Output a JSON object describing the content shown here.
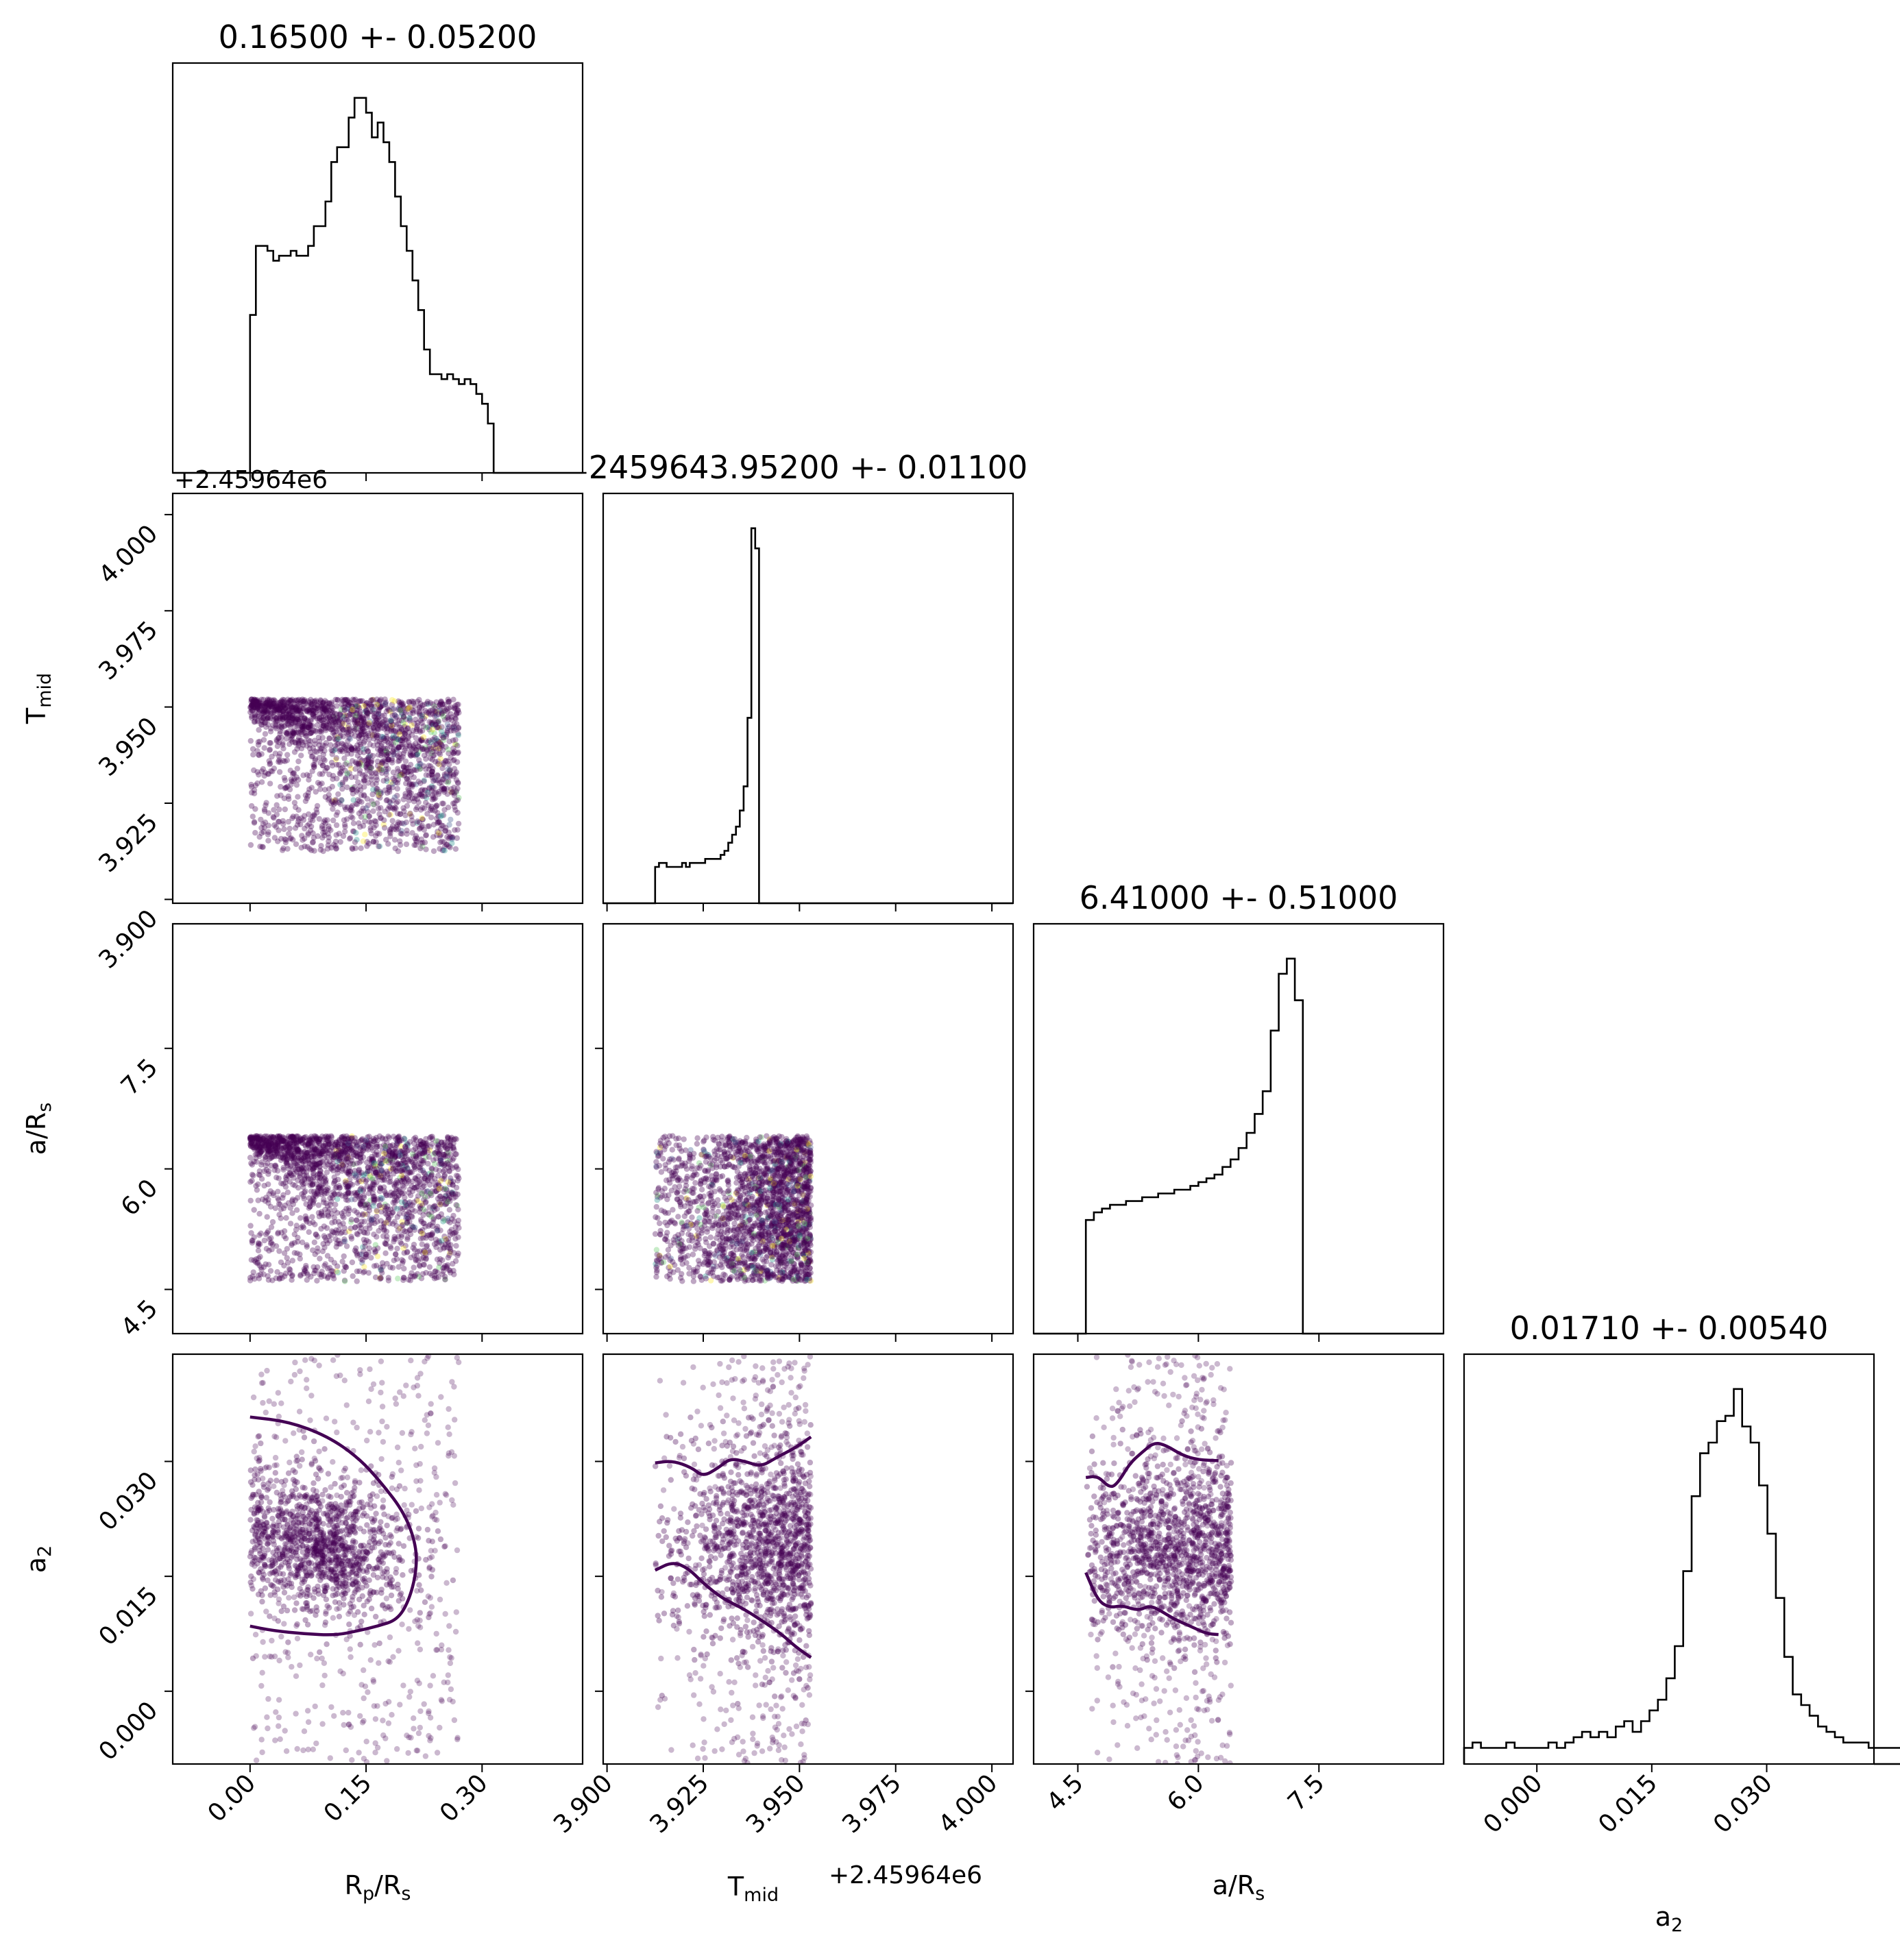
{
  "chart_data": {
    "type": "corner",
    "colors": {
      "cloud": "#440154",
      "contour": "#440154",
      "hist": "#000000",
      "axes": "#000000"
    },
    "offset_label": "+2.45964e6",
    "params": [
      {
        "key": "rp",
        "label": "R",
        "sub": "p",
        "label_tail": "/R",
        "sub2": "s",
        "range": [
          -0.1,
          0.43
        ],
        "ticks": [
          0.0,
          0.15,
          0.3
        ],
        "tick_labels": [
          "0.00",
          "0.15",
          "0.30"
        ],
        "title": "0.16500 +- 0.05200"
      },
      {
        "key": "tmid",
        "label": "T",
        "sub": "mid",
        "label_tail": "",
        "sub2": "",
        "range": [
          3.899,
          4.0055
        ],
        "offset": 2459640,
        "ticks": [
          3.9,
          3.925,
          3.95,
          3.975,
          4.0
        ],
        "tick_labels": [
          "3.900",
          "3.925",
          "3.950",
          "3.975",
          "4.000"
        ],
        "title": "2459643.95200 +- 0.01100"
      },
      {
        "key": "ars",
        "label": "a/R",
        "sub": "s",
        "label_tail": "",
        "sub2": "",
        "range": [
          3.95,
          9.05
        ],
        "ticks": [
          4.5,
          6.0,
          7.5
        ],
        "tick_labels": [
          "4.5",
          "6.0",
          "7.5"
        ],
        "title": "6.41000 +- 0.51000"
      },
      {
        "key": "a2",
        "label": "a",
        "sub": "2",
        "label_tail": "",
        "sub2": "",
        "range": [
          -0.0095,
          0.044
        ],
        "ticks": [
          0.0,
          0.015,
          0.03
        ],
        "tick_labels": [
          "0.000",
          "0.015",
          "0.030"
        ],
        "title": "0.01710 +- 0.00540"
      }
    ],
    "histograms": [
      {
        "param": "rp",
        "bin_start": 0.0,
        "bin_width": 0.0075,
        "counts": [
          32,
          46,
          46,
          45,
          43,
          44,
          44,
          45,
          44,
          44,
          46,
          50,
          50,
          55,
          63,
          66,
          66,
          72,
          76,
          76,
          73,
          68,
          71,
          67,
          63,
          56,
          50,
          45,
          39,
          33,
          25,
          20,
          20,
          19,
          20,
          19,
          18,
          19,
          18,
          16,
          14,
          10,
          0,
          0,
          0,
          0,
          0,
          0,
          0,
          0,
          0,
          0,
          0,
          0,
          0,
          0,
          0,
          0
        ]
      },
      {
        "param": "tmid",
        "bin_start": 3.9125,
        "bin_width": 0.001,
        "counts": [
          9,
          10,
          10,
          9,
          9,
          9,
          9,
          10,
          9,
          10,
          10,
          10,
          10,
          11,
          11,
          11,
          11,
          12,
          13,
          15,
          17,
          19,
          23,
          29,
          46,
          93,
          88
        ]
      },
      {
        "param": "ars",
        "bin_start": 4.6,
        "bin_width": 0.1,
        "counts": [
          30,
          32,
          33,
          34,
          34,
          35,
          35,
          36,
          36,
          37,
          37,
          38,
          38,
          39,
          40,
          41,
          42,
          44,
          46,
          49,
          53,
          58,
          64,
          80,
          95,
          99,
          88
        ]
      },
      {
        "param": "a2",
        "bin_start": -0.0095,
        "bin_width": 0.0011,
        "counts": [
          3,
          4,
          3,
          3,
          3,
          4,
          3,
          3,
          3,
          3,
          4,
          3,
          4,
          5,
          6,
          5,
          6,
          5,
          7,
          8,
          6,
          8,
          10,
          12,
          16,
          22,
          36,
          50,
          58,
          60,
          64,
          65,
          70,
          63,
          60,
          52,
          43,
          31,
          20,
          13,
          11,
          9,
          7,
          6,
          5,
          4,
          4,
          4,
          3,
          3,
          3,
          3,
          3,
          2,
          3,
          3,
          2,
          3,
          2,
          2
        ]
      }
    ],
    "contours": [
      {
        "x": "rp",
        "y": "a2",
        "points": [
          [
            0.0,
            0.0358
          ],
          [
            0.05,
            0.0352
          ],
          [
            0.1,
            0.0333
          ],
          [
            0.14,
            0.0305
          ],
          [
            0.17,
            0.0272
          ],
          [
            0.2,
            0.0232
          ],
          [
            0.215,
            0.019
          ],
          [
            0.215,
            0.0155
          ],
          [
            0.205,
            0.0117
          ],
          [
            0.19,
            0.0093
          ],
          [
            0.165,
            0.0085
          ],
          [
            0.14,
            0.0079
          ],
          [
            0.11,
            0.0073
          ],
          [
            0.07,
            0.0075
          ],
          [
            0.03,
            0.0079
          ],
          [
            0.0,
            0.0085
          ]
        ]
      },
      {
        "x": "tmid",
        "y": "a2",
        "points": [
          [
            3.9125,
            0.0298
          ],
          [
            3.917,
            0.0301
          ],
          [
            3.922,
            0.0292
          ],
          [
            3.925,
            0.028
          ],
          [
            3.929,
            0.0292
          ],
          [
            3.932,
            0.0304
          ],
          [
            3.936,
            0.03
          ],
          [
            3.94,
            0.0293
          ],
          [
            3.944,
            0.0305
          ],
          [
            3.949,
            0.0318
          ],
          [
            3.953,
            0.0332
          ]
        ]
      },
      {
        "x": "tmid",
        "y": "a2",
        "points": [
          [
            3.9125,
            0.0158
          ],
          [
            3.917,
            0.0169
          ],
          [
            3.921,
            0.0161
          ],
          [
            3.925,
            0.0141
          ],
          [
            3.93,
            0.0121
          ],
          [
            3.935,
            0.0109
          ],
          [
            3.94,
            0.0093
          ],
          [
            3.945,
            0.0076
          ],
          [
            3.949,
            0.0058
          ],
          [
            3.953,
            0.0044
          ]
        ]
      },
      {
        "x": "ars",
        "y": "a2",
        "points": [
          [
            4.6,
            0.0279
          ],
          [
            4.75,
            0.0281
          ],
          [
            4.9,
            0.0265
          ],
          [
            5.0,
            0.0272
          ],
          [
            5.15,
            0.0298
          ],
          [
            5.3,
            0.0312
          ],
          [
            5.45,
            0.0325
          ],
          [
            5.6,
            0.0321
          ],
          [
            5.8,
            0.0308
          ],
          [
            6.0,
            0.0302
          ],
          [
            6.25,
            0.0301
          ]
        ]
      },
      {
        "x": "ars",
        "y": "a2",
        "points": [
          [
            4.6,
            0.0155
          ],
          [
            4.75,
            0.0118
          ],
          [
            4.9,
            0.0109
          ],
          [
            5.05,
            0.0112
          ],
          [
            5.25,
            0.0105
          ],
          [
            5.4,
            0.0112
          ],
          [
            5.55,
            0.0104
          ],
          [
            5.7,
            0.0094
          ],
          [
            5.9,
            0.0085
          ],
          [
            6.1,
            0.0075
          ],
          [
            6.25,
            0.0074
          ]
        ]
      }
    ],
    "clouds": [
      {
        "x": "rp",
        "y": "tmid",
        "x_range": [
          0.0,
          0.27
        ],
        "y_range": [
          3.9125,
          3.952
        ],
        "dense": "top"
      },
      {
        "x": "rp",
        "y": "ars",
        "x_range": [
          0.0,
          0.27
        ],
        "y_range": [
          4.6,
          6.41
        ],
        "dense": "top"
      },
      {
        "x": "tmid",
        "y": "ars",
        "x_range": [
          3.9125,
          3.953
        ],
        "y_range": [
          4.6,
          6.41
        ],
        "dense": "right"
      },
      {
        "x": "rp",
        "y": "a2",
        "x_range": [
          0.0,
          0.27
        ],
        "y_range": [
          -0.0095,
          0.044
        ],
        "dense": "blob"
      },
      {
        "x": "tmid",
        "y": "a2",
        "x_range": [
          3.9125,
          3.953
        ],
        "y_range": [
          -0.0095,
          0.044
        ],
        "dense": "rightband"
      },
      {
        "x": "ars",
        "y": "a2",
        "x_range": [
          4.6,
          6.41
        ],
        "y_range": [
          -0.0095,
          0.044
        ],
        "dense": "band"
      }
    ]
  }
}
